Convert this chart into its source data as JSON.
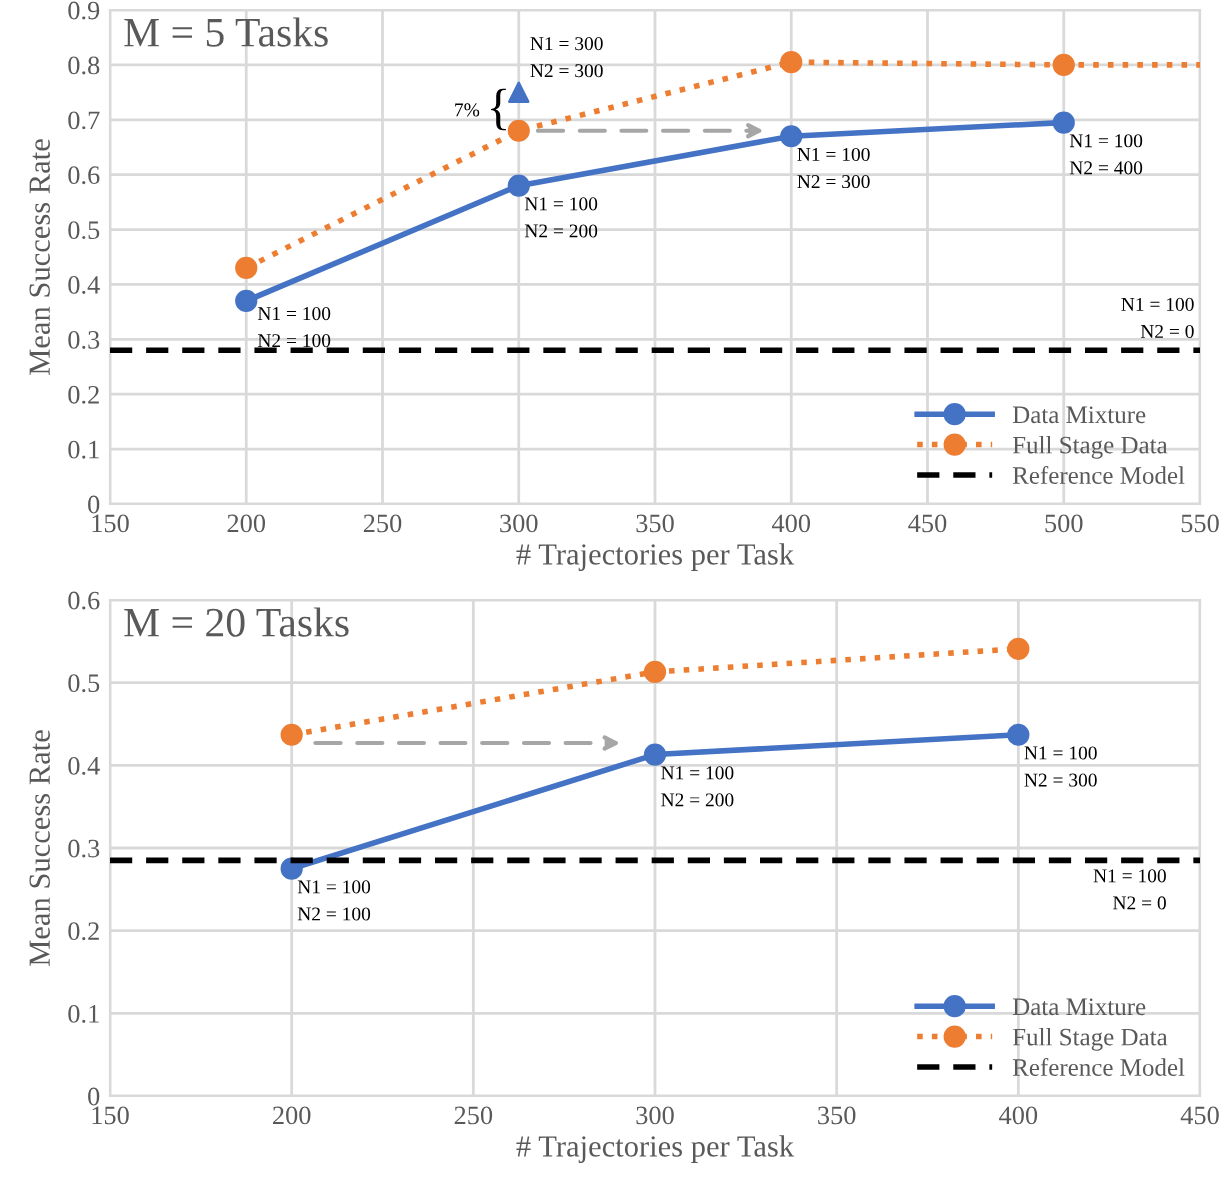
{
  "chart_data": [
    {
      "type": "line",
      "title": "M = 5 Tasks",
      "xlabel": "# Trajectories per Task",
      "ylabel": "Mean Success Rate",
      "xlim": [
        150,
        550
      ],
      "xticks": [
        150,
        200,
        250,
        300,
        350,
        400,
        450,
        500,
        550
      ],
      "ylim": [
        0,
        0.9
      ],
      "yticks": [
        0,
        0.1,
        0.2,
        0.3,
        0.4,
        0.5,
        0.6,
        0.7,
        0.8,
        0.9
      ],
      "grid": true,
      "legend": "bottom right",
      "series": [
        {
          "name": "Data Mixture",
          "color": "#4472c4",
          "x": [
            200,
            300,
            400,
            500
          ],
          "values": [
            0.37,
            0.58,
            0.67,
            0.695
          ],
          "marker": "circle",
          "line_style": "solid"
        },
        {
          "name": "Full Stage Data",
          "color": "#ed7d31",
          "x": [
            200,
            300,
            400,
            500
          ],
          "values": [
            0.43,
            0.68,
            0.805,
            0.8
          ],
          "marker": "circle",
          "line_style": "dotted"
        },
        {
          "color": "#ed7d31",
          "x": [
            500,
            550
          ],
          "values": [
            0.8,
            0.8
          ],
          "marker": "none",
          "line_style": "dotted"
        },
        {
          "type": "scatter",
          "color": "#4472c4",
          "x": [
            300
          ],
          "values": [
            0.75
          ],
          "marker": "triangle"
        },
        {
          "name": "Reference Model",
          "color": "#000000",
          "x": [
            150,
            550
          ],
          "values": [
            0.28,
            0.28
          ],
          "marker": "none",
          "line_style": "dashed"
        }
      ],
      "annotations": [
        {
          "text": "N1 = 100\nN2 = 100",
          "x": 200,
          "y": 0.37
        },
        {
          "text": "N1 = 100\nN2 = 200",
          "x": 300,
          "y": 0.58
        },
        {
          "text": "N1 = 100\nN2 = 300",
          "x": 400,
          "y": 0.67
        },
        {
          "text": "N1 = 100\nN2 = 400",
          "x": 500,
          "y": 0.695
        },
        {
          "text": "N1 = 300\nN2 = 300",
          "x": 300,
          "y": 0.75
        },
        {
          "text": "N1 = 100\nN2 = 0",
          "x": 550,
          "y": 0.28
        },
        {
          "text": "7%",
          "x": 300,
          "y": 0.715
        },
        {
          "text": "{",
          "x": 300,
          "y": 0.715
        }
      ]
    },
    {
      "type": "line",
      "title": "M = 20 Tasks",
      "xlabel": "# Trajectories per Task",
      "ylabel": "Mean Success Rate",
      "xlim": [
        150,
        450
      ],
      "xticks": [
        150,
        200,
        250,
        300,
        350,
        400,
        450
      ],
      "ylim": [
        0,
        0.6
      ],
      "yticks": [
        0,
        0.1,
        0.2,
        0.3,
        0.4,
        0.5,
        0.6
      ],
      "grid": true,
      "legend": "bottom right",
      "series": [
        {
          "name": "Data Mixture",
          "color": "#4472c4",
          "x": [
            200,
            300,
            400
          ],
          "values": [
            0.275,
            0.413,
            0.437
          ],
          "marker": "circle",
          "line_style": "solid"
        },
        {
          "name": "Full Stage Data",
          "color": "#ed7d31",
          "x": [
            200,
            300,
            400
          ],
          "values": [
            0.437,
            0.513,
            0.541
          ],
          "marker": "circle",
          "line_style": "dotted"
        },
        {
          "name": "Reference Model",
          "color": "#000000",
          "x": [
            150,
            450
          ],
          "values": [
            0.285,
            0.285
          ],
          "marker": "none",
          "line_style": "dashed"
        }
      ],
      "annotations": [
        {
          "text": "N1 = 100\nN2 = 100",
          "x": 200,
          "y": 0.275
        },
        {
          "text": "N1 = 100\nN2 = 200",
          "x": 300,
          "y": 0.413
        },
        {
          "text": "N1 = 100\nN2 = 300",
          "x": 400,
          "y": 0.437
        },
        {
          "text": "N1 = 100\nN2 = 0",
          "x": 450,
          "y": 0.285
        }
      ]
    }
  ]
}
